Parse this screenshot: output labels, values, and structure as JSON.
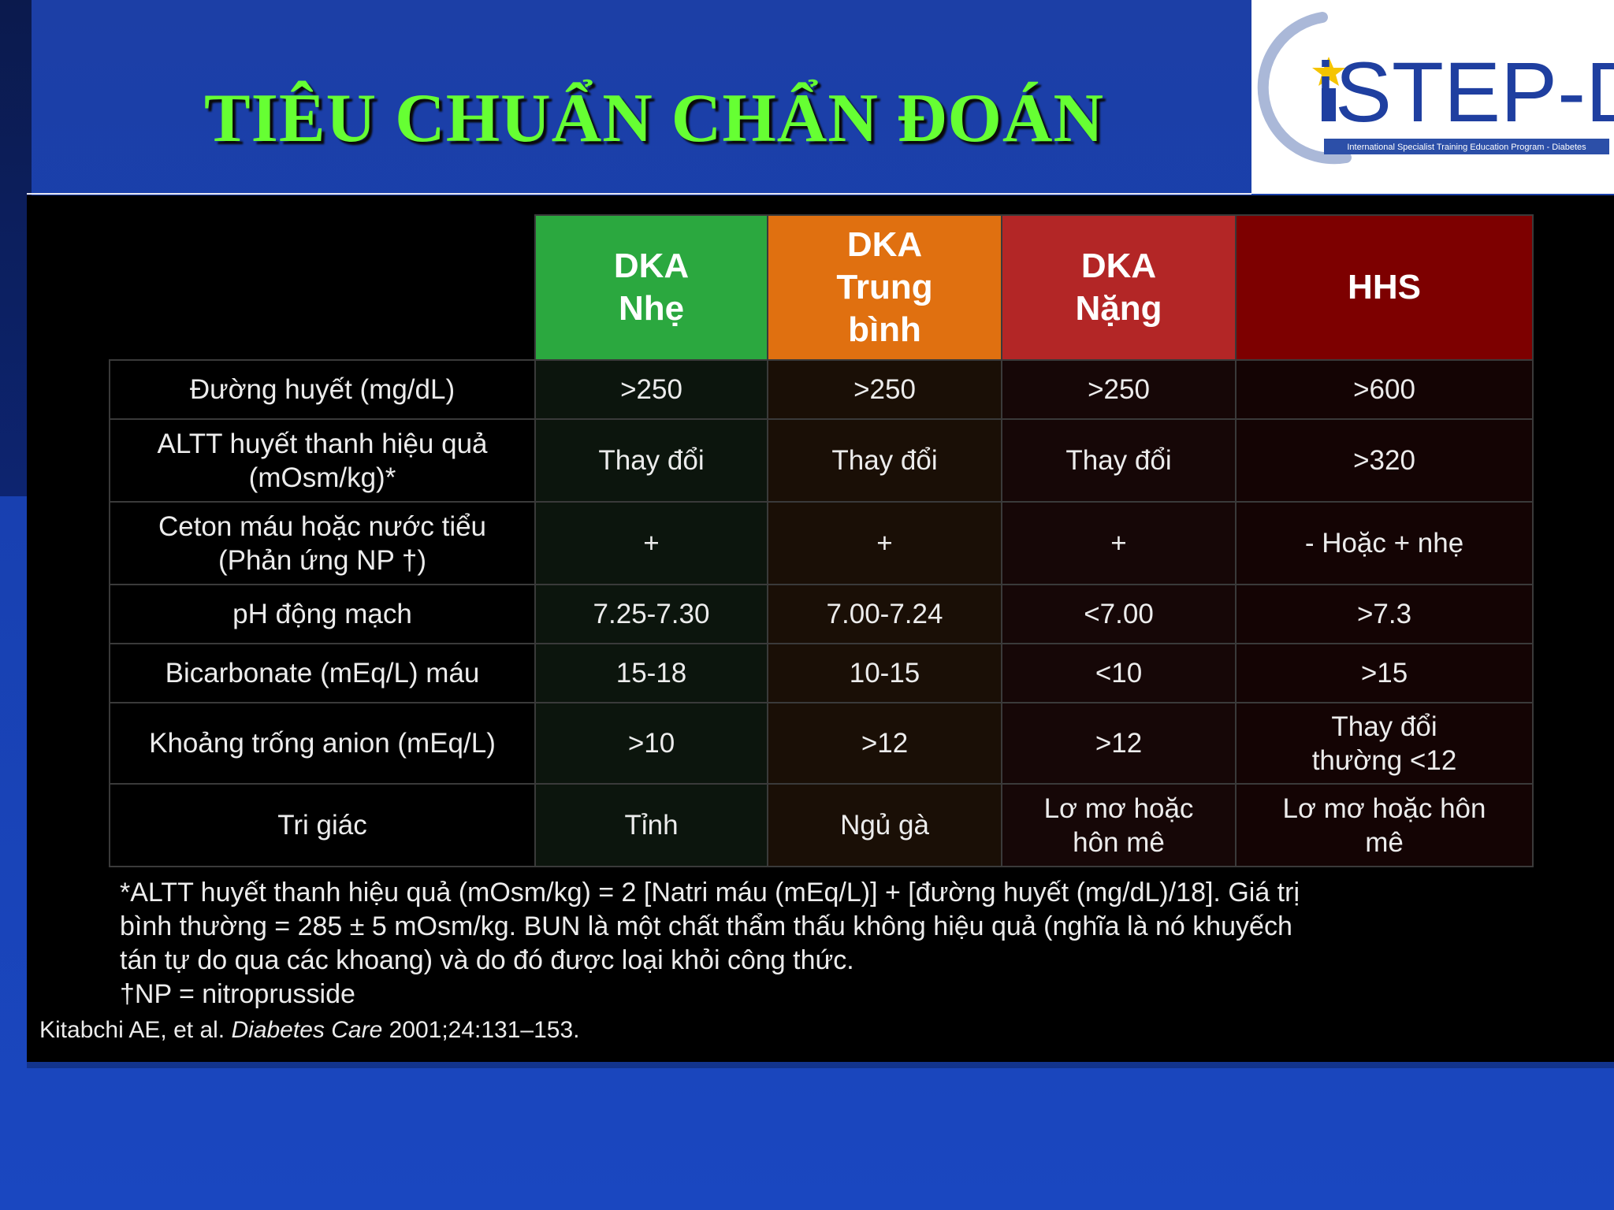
{
  "title": "TIÊU CHUẨN CHẨN ĐOÁN",
  "logo": {
    "text": "iSTEP-D",
    "subtitle": "International Specialist Training Education Program - Diabetes",
    "colors": {
      "ring": "#aab8d8",
      "text": "#1f3fa0",
      "star": "#f5c400",
      "bar": "#2c4fa8"
    }
  },
  "table": {
    "columns": [
      {
        "lines": [
          "DKA",
          "Nhẹ"
        ],
        "color": "#2ba83f"
      },
      {
        "lines": [
          "DKA",
          "Trung",
          "bình"
        ],
        "color": "#e07010"
      },
      {
        "lines": [
          "DKA",
          "Nặng"
        ],
        "color": "#b32626"
      },
      {
        "lines": [
          "HHS"
        ],
        "color": "#7d0000"
      }
    ],
    "rows": [
      {
        "label": [
          "Đường huyết (mg/dL)"
        ],
        "values": [
          [
            ">250"
          ],
          [
            ">250"
          ],
          [
            ">250"
          ],
          [
            ">600"
          ]
        ]
      },
      {
        "label": [
          "ALTT huyết thanh hiệu quả",
          "(mOsm/kg)*"
        ],
        "values": [
          [
            "Thay đổi"
          ],
          [
            "Thay đổi"
          ],
          [
            "Thay đổi"
          ],
          [
            ">320"
          ]
        ]
      },
      {
        "label": [
          "Ceton máu hoặc nước tiểu",
          "(Phản ứng NP †)"
        ],
        "values": [
          [
            "+"
          ],
          [
            "+"
          ],
          [
            "+"
          ],
          [
            "- Hoặc + nhẹ"
          ]
        ]
      },
      {
        "label": [
          "pH động mạch"
        ],
        "values": [
          [
            "7.25-7.30"
          ],
          [
            "7.00-7.24"
          ],
          [
            "<7.00"
          ],
          [
            ">7.3"
          ]
        ]
      },
      {
        "label": [
          "Bicarbonate (mEq/L)  máu"
        ],
        "values": [
          [
            "15-18"
          ],
          [
            "10-15"
          ],
          [
            "<10"
          ],
          [
            ">15"
          ]
        ]
      },
      {
        "label": [
          "Khoảng trống anion (mEq/L)"
        ],
        "values": [
          [
            ">10"
          ],
          [
            ">12"
          ],
          [
            ">12"
          ],
          [
            "Thay đổi",
            "thường <12"
          ]
        ]
      },
      {
        "label": [
          "Tri giác"
        ],
        "values": [
          [
            "Tỉnh"
          ],
          [
            "Ngủ gà"
          ],
          [
            "Lơ mơ hoặc",
            "hôn mê"
          ],
          [
            "Lơ mơ hoặc hôn",
            "mê"
          ]
        ]
      }
    ]
  },
  "footnote": [
    "*ALTT huyết thanh hiệu quả (mOsm/kg) = 2 [Natri máu (mEq/L)] + [đường huyết (mg/dL)/18]. Giá trị",
    "bình thường = 285 ± 5 mOsm/kg. BUN là một chất thẩm thấu không hiệu quả (nghĩa là nó khuyếch",
    "tán tự do qua các khoang) và do đó được loại khỏi công thức.",
    "†NP = nitroprusside"
  ],
  "citation": {
    "authors": "Kitabchi AE, et al.",
    "journal": "Diabetes Care",
    "details": "2001;24:131–153."
  }
}
